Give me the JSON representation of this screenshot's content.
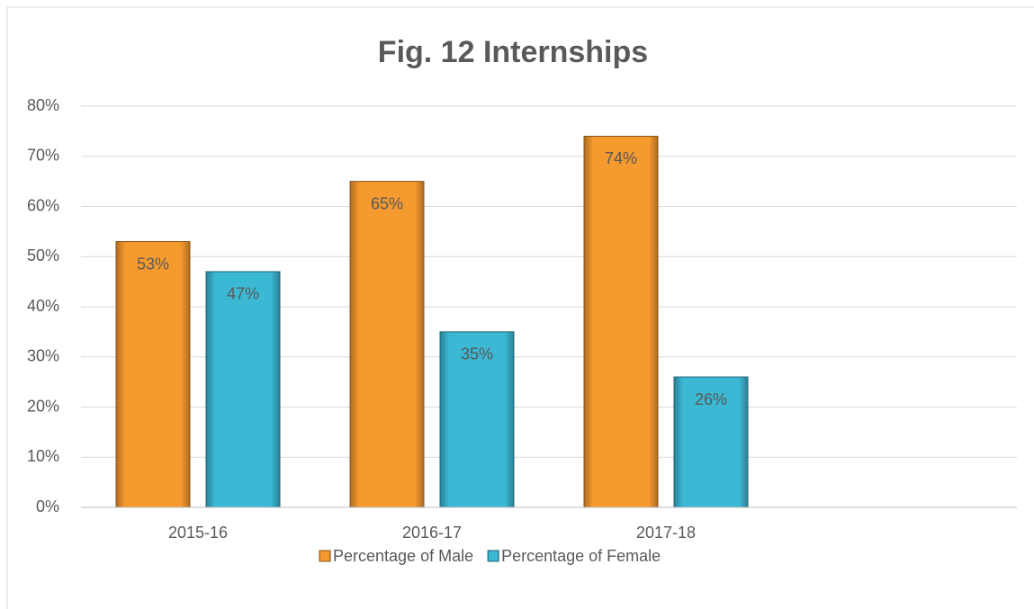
{
  "chart_data": {
    "type": "bar",
    "title": "Fig. 12 Internships",
    "categories": [
      "2015-16",
      "2016-17",
      "2017-18",
      null
    ],
    "series": [
      {
        "name": "Percentage of Male",
        "color": "#f59a2f",
        "values": [
          53,
          65,
          74,
          null
        ],
        "value_labels": [
          "53%",
          "65%",
          "74%",
          null
        ]
      },
      {
        "name": "Percentage of Female",
        "color": "#3bb8d4",
        "values": [
          47,
          35,
          26,
          null
        ],
        "value_labels": [
          "47%",
          "35%",
          "26%",
          null
        ]
      }
    ],
    "ylim": [
      0,
      80
    ],
    "yticks": [
      {
        "value": 0,
        "label": "0%"
      },
      {
        "value": 10,
        "label": "10%"
      },
      {
        "value": 20,
        "label": "20%"
      },
      {
        "value": 30,
        "label": "30%"
      },
      {
        "value": 40,
        "label": "40%"
      },
      {
        "value": 50,
        "label": "50%"
      },
      {
        "value": 60,
        "label": "60%"
      },
      {
        "value": 70,
        "label": "70%"
      },
      {
        "value": 80,
        "label": "80%"
      }
    ],
    "grid": true,
    "legend": "bottom"
  }
}
